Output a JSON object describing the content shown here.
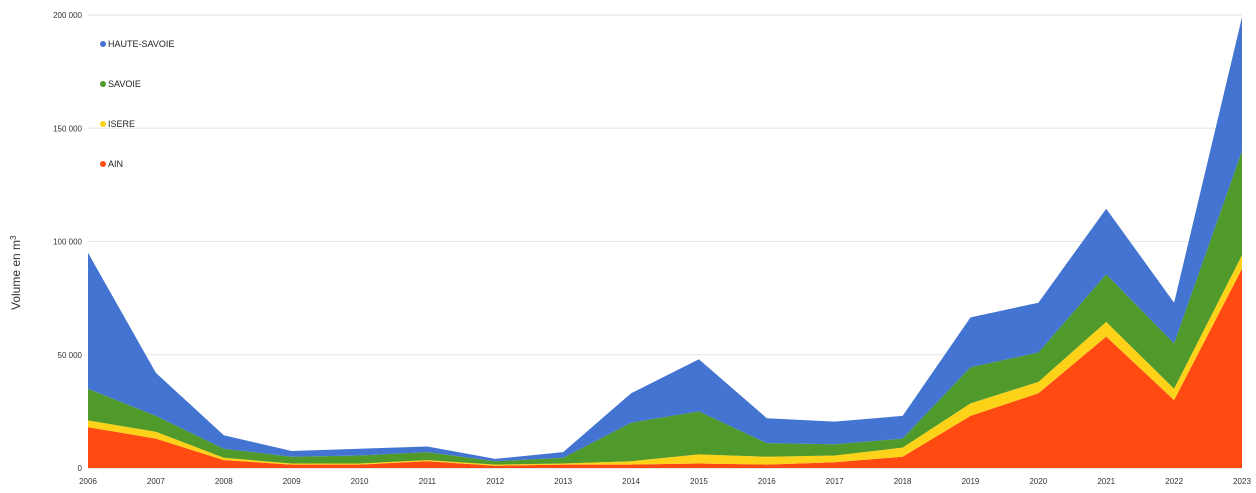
{
  "chart_data": {
    "type": "area",
    "stacked": true,
    "title": "",
    "xlabel": "",
    "ylabel": "Volume en m",
    "ylabel_sup": "3",
    "x": [
      "2006",
      "2007",
      "2008",
      "2009",
      "2010",
      "2011",
      "2012",
      "2013",
      "2014",
      "2015",
      "2016",
      "2017",
      "2018",
      "2019",
      "2020",
      "2021",
      "2022",
      "2023"
    ],
    "ylim": [
      0,
      200000
    ],
    "yticks": [
      {
        "value": 0,
        "label": "0"
      },
      {
        "value": 50000,
        "label": "50 000"
      },
      {
        "value": 100000,
        "label": "100 000"
      },
      {
        "value": 150000,
        "label": "150 000"
      },
      {
        "value": 200000,
        "label": "200 000"
      }
    ],
    "grid": true,
    "legend_position": "top-left",
    "series": [
      {
        "name": "AIN",
        "color": "#ff4a12",
        "values": [
          18000,
          13000,
          3500,
          1500,
          1500,
          3000,
          1000,
          1500,
          1500,
          2000,
          1500,
          2500,
          5000,
          23000,
          33000,
          58000,
          30000,
          88000
        ]
      },
      {
        "name": "ISERE",
        "color": "#ffd21a",
        "values": [
          3000,
          3000,
          1000,
          500,
          500,
          500,
          500,
          500,
          1500,
          4000,
          3500,
          3000,
          4000,
          5500,
          5000,
          6500,
          5000,
          6000
        ]
      },
      {
        "name": "SAVOIE",
        "color": "#4f9a2a",
        "values": [
          14000,
          7000,
          4000,
          3000,
          3500,
          3500,
          1500,
          2500,
          17000,
          19000,
          6000,
          5000,
          4000,
          16000,
          13000,
          21000,
          20000,
          46000
        ]
      },
      {
        "name": "HAUTE-SAVOIE",
        "color": "#4374d1",
        "values": [
          60000,
          19000,
          6000,
          2500,
          3000,
          2500,
          1000,
          2500,
          13000,
          23000,
          11000,
          10000,
          10000,
          22000,
          22000,
          29000,
          18000,
          59000
        ]
      }
    ],
    "legend_order": [
      "HAUTE-SAVOIE",
      "SAVOIE",
      "ISERE",
      "AIN"
    ]
  }
}
